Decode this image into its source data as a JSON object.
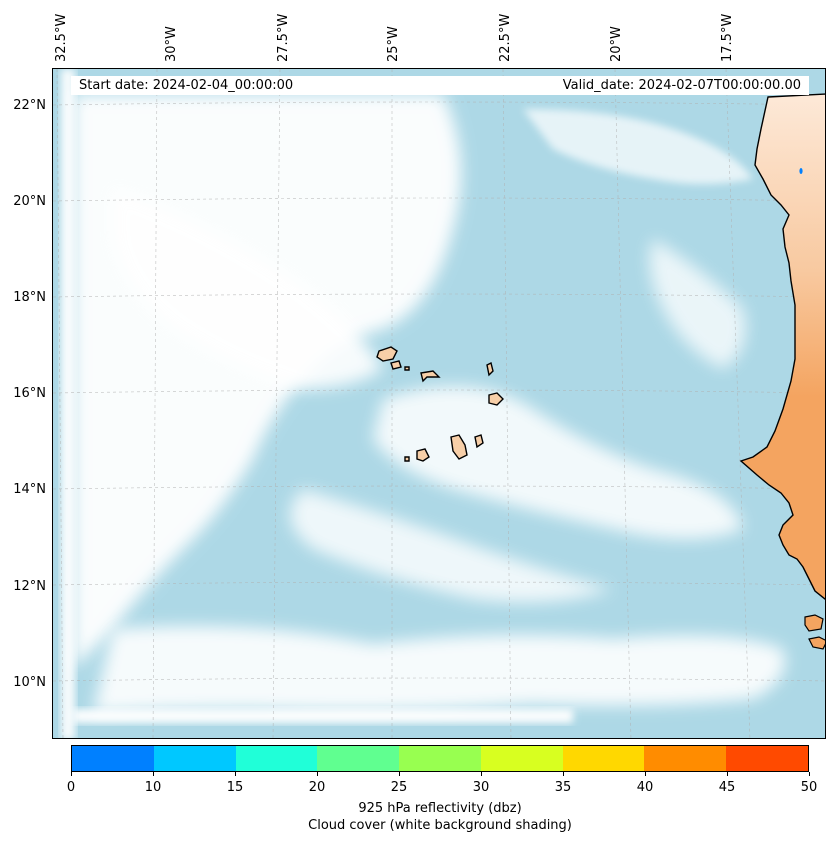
{
  "map": {
    "lon_labels": [
      "32.5°W",
      "30°W",
      "27.5°W",
      "25°W",
      "22.5°W",
      "20°W",
      "17.5°W"
    ],
    "lat_labels": [
      "22°N",
      "20°N",
      "18°N",
      "16°N",
      "14°N",
      "12°N",
      "10°N"
    ],
    "start_date": "Start date: 2024-02-04_00:00:00",
    "valid_date": "Valid_date: 2024-02-07T00:00:00.00",
    "ocean_color": "#add8e6",
    "land_color": "#f4a460",
    "island_color": "#f7cfa8",
    "cloud_color": "#ffffff"
  },
  "colorbar": {
    "colors": [
      "#0080ff",
      "#00c8ff",
      "#20ffd8",
      "#60ff90",
      "#98ff50",
      "#d8ff20",
      "#ffd800",
      "#ff8c00",
      "#ff4a00"
    ],
    "tick_labels": [
      "0",
      "10",
      "15",
      "20",
      "25",
      "30",
      "35",
      "40",
      "45",
      "50"
    ],
    "title": "925 hPa reflectivity (dbz)",
    "subtitle": "Cloud cover (white background shading)"
  }
}
